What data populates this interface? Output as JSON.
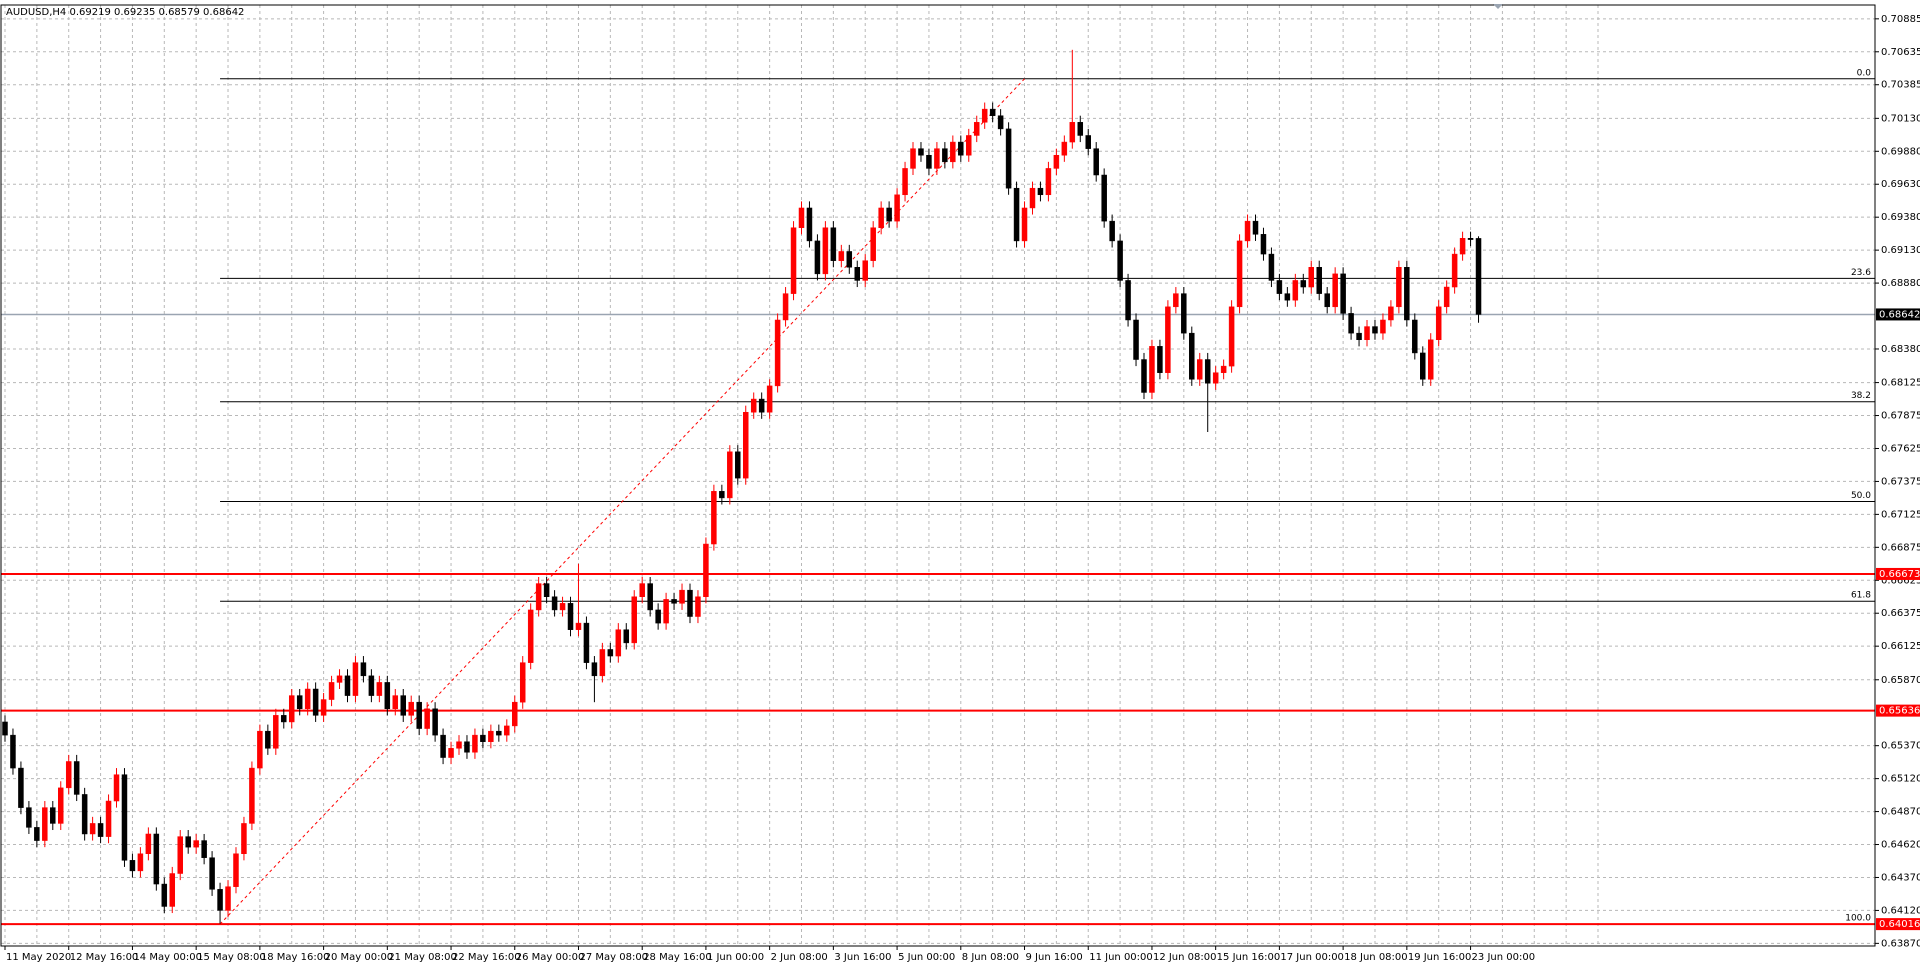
{
  "chart_data": {
    "type": "candlestick",
    "title": "AUDUSD,H4  0.69219 0.69235 0.68579 0.68642",
    "categories": [
      "11 May 2020",
      null,
      null,
      null,
      null,
      null,
      null,
      null,
      "12 May 16:00",
      null,
      null,
      null,
      null,
      null,
      null,
      null,
      "14 May 00:00",
      null,
      null,
      null,
      null,
      null,
      null,
      null,
      "15 May 08:00",
      null,
      null,
      null,
      null,
      null,
      null,
      null,
      "18 May 16:00",
      null,
      null,
      null,
      null,
      null,
      null,
      null,
      "20 May 00:00",
      null,
      null,
      null,
      null,
      null,
      null,
      null,
      "21 May 08:00",
      null,
      null,
      null,
      null,
      null,
      null,
      null,
      "22 May 16:00",
      null,
      null,
      null,
      null,
      null,
      null,
      null,
      "26 May 00:00",
      null,
      null,
      null,
      null,
      null,
      null,
      null,
      "27 May 08:00",
      null,
      null,
      null,
      null,
      null,
      null,
      null,
      "28 May 16:00",
      null,
      null,
      null,
      null,
      null,
      null,
      null,
      "1 Jun 00:00",
      null,
      null,
      null,
      null,
      null,
      null,
      null,
      "2 Jun 08:00",
      null,
      null,
      null,
      null,
      null,
      null,
      null,
      "3 Jun 16:00",
      null,
      null,
      null,
      null,
      null,
      null,
      null,
      "5 Jun 00:00",
      null,
      null,
      null,
      null,
      null,
      null,
      null,
      "8 Jun 08:00",
      null,
      null,
      null,
      null,
      null,
      null,
      null,
      "9 Jun 16:00",
      null,
      null,
      null,
      null,
      null,
      null,
      null,
      "11 Jun 00:00",
      null,
      null,
      null,
      null,
      null,
      null,
      null,
      "12 Jun 08:00",
      null,
      null,
      null,
      null,
      null,
      null,
      null,
      "15 Jun 16:00",
      null,
      null,
      null,
      null,
      null,
      null,
      null,
      "17 Jun 00:00",
      null,
      null,
      null,
      null,
      null,
      null,
      null,
      "18 Jun 08:00",
      null,
      null,
      null,
      null,
      null,
      null,
      null,
      "19 Jun 16:00",
      null,
      null,
      null,
      null,
      null,
      null,
      null,
      "23 Jun 00:00",
      null
    ],
    "open": [
      0.6555,
      0.6545,
      0.652,
      0.649,
      0.6475,
      0.6465,
      0.649,
      0.6478,
      0.6505,
      0.6525,
      0.65,
      0.647,
      0.6478,
      0.6468,
      0.6495,
      0.6515,
      0.645,
      0.6442,
      0.6455,
      0.647,
      0.6432,
      0.6415,
      0.644,
      0.6468,
      0.646,
      0.6465,
      0.6452,
      0.6428,
      0.6412,
      0.643,
      0.6455,
      0.6478,
      0.652,
      0.6548,
      0.6535,
      0.656,
      0.6555,
      0.6575,
      0.6565,
      0.658,
      0.656,
      0.6572,
      0.6585,
      0.659,
      0.6575,
      0.66,
      0.659,
      0.6575,
      0.6585,
      0.6565,
      0.6575,
      0.656,
      0.657,
      0.655,
      0.6565,
      0.6545,
      0.6528,
      0.6535,
      0.654,
      0.6532,
      0.6545,
      0.654,
      0.6548,
      0.6545,
      0.6552,
      0.657,
      0.66,
      0.664,
      0.666,
      0.665,
      0.664,
      0.6645,
      0.6625,
      0.663,
      0.66,
      0.659,
      0.661,
      0.6605,
      0.6625,
      0.6615,
      0.665,
      0.666,
      0.664,
      0.663,
      0.6648,
      0.6645,
      0.6655,
      0.6635,
      0.665,
      0.669,
      0.673,
      0.6725,
      0.676,
      0.674,
      0.679,
      0.68,
      0.679,
      0.681,
      0.686,
      0.688,
      0.693,
      0.6945,
      0.692,
      0.6895,
      0.693,
      0.6905,
      0.6912,
      0.69,
      0.689,
      0.6905,
      0.693,
      0.6945,
      0.6935,
      0.6955,
      0.6975,
      0.699,
      0.6985,
      0.6975,
      0.699,
      0.698,
      0.6995,
      0.6985,
      0.7,
      0.701,
      0.702,
      0.7015,
      0.7005,
      0.696,
      0.692,
      0.6945,
      0.696,
      0.6955,
      0.6975,
      0.6985,
      0.6995,
      0.701,
      0.7,
      0.699,
      0.697,
      0.6935,
      0.692,
      0.689,
      0.686,
      0.683,
      0.6805,
      0.684,
      0.682,
      0.687,
      0.688,
      0.685,
      0.6815,
      0.683,
      0.6812,
      0.682,
      0.6825,
      0.687,
      0.692,
      0.6935,
      0.6925,
      0.691,
      0.689,
      0.688,
      0.6875,
      0.689,
      0.6885,
      0.69,
      0.688,
      0.687,
      0.6895,
      0.6865,
      0.685,
      0.6845,
      0.6855,
      0.685,
      0.686,
      0.687,
      0.69,
      0.686,
      0.6835,
      0.6815,
      0.6845,
      0.687,
      0.6885,
      0.691,
      0.6922,
      0.69219
    ],
    "high": [
      0.656,
      0.655,
      0.6525,
      0.6495,
      0.648,
      0.6495,
      0.6495,
      0.651,
      0.653,
      0.653,
      0.6505,
      0.6483,
      0.6483,
      0.65,
      0.652,
      0.652,
      0.6455,
      0.646,
      0.6475,
      0.6475,
      0.6437,
      0.6445,
      0.6473,
      0.6473,
      0.647,
      0.647,
      0.6457,
      0.6433,
      0.6435,
      0.646,
      0.6483,
      0.6525,
      0.6553,
      0.6553,
      0.6565,
      0.6565,
      0.658,
      0.658,
      0.6585,
      0.6585,
      0.6577,
      0.659,
      0.6595,
      0.6595,
      0.6605,
      0.6605,
      0.6595,
      0.659,
      0.659,
      0.658,
      0.658,
      0.6575,
      0.6575,
      0.657,
      0.657,
      0.655,
      0.654,
      0.6545,
      0.6545,
      0.655,
      0.655,
      0.6553,
      0.6553,
      0.6557,
      0.6575,
      0.6605,
      0.6645,
      0.6665,
      0.6665,
      0.6655,
      0.665,
      0.665,
      0.6675,
      0.6635,
      0.6605,
      0.6615,
      0.6615,
      0.663,
      0.663,
      0.6655,
      0.6665,
      0.6665,
      0.6645,
      0.6653,
      0.6653,
      0.666,
      0.666,
      0.6655,
      0.6695,
      0.6735,
      0.6735,
      0.6765,
      0.6765,
      0.6795,
      0.6805,
      0.6805,
      0.6815,
      0.6865,
      0.6885,
      0.6935,
      0.695,
      0.695,
      0.6925,
      0.6935,
      0.6935,
      0.6917,
      0.6917,
      0.6905,
      0.691,
      0.6935,
      0.695,
      0.695,
      0.696,
      0.698,
      0.6995,
      0.6995,
      0.699,
      0.6995,
      0.6995,
      0.7,
      0.7,
      0.7005,
      0.7015,
      0.7025,
      0.7025,
      0.702,
      0.701,
      0.6965,
      0.695,
      0.6965,
      0.6965,
      0.698,
      0.699,
      0.7,
      0.7065,
      0.7015,
      0.7005,
      0.6995,
      0.6975,
      0.694,
      0.6925,
      0.6895,
      0.6865,
      0.6835,
      0.6845,
      0.6845,
      0.6875,
      0.6885,
      0.6885,
      0.6855,
      0.6835,
      0.6835,
      0.6825,
      0.683,
      0.6875,
      0.6925,
      0.694,
      0.694,
      0.693,
      0.6915,
      0.6895,
      0.6885,
      0.6895,
      0.6895,
      0.6905,
      0.6905,
      0.6885,
      0.69,
      0.69,
      0.687,
      0.6855,
      0.686,
      0.686,
      0.6865,
      0.6875,
      0.6905,
      0.6905,
      0.6865,
      0.684,
      0.685,
      0.6875,
      0.689,
      0.6915,
      0.6927,
      0.6927,
      0.69235
    ],
    "low": [
      0.654,
      0.6515,
      0.6485,
      0.647,
      0.646,
      0.646,
      0.6473,
      0.6473,
      0.65,
      0.6495,
      0.6465,
      0.6465,
      0.6463,
      0.6463,
      0.649,
      0.6445,
      0.6437,
      0.6437,
      0.645,
      0.6427,
      0.641,
      0.641,
      0.6435,
      0.6455,
      0.6455,
      0.6447,
      0.6423,
      0.6402,
      0.6407,
      0.6425,
      0.645,
      0.6473,
      0.6515,
      0.653,
      0.653,
      0.655,
      0.655,
      0.656,
      0.656,
      0.6555,
      0.6555,
      0.6567,
      0.658,
      0.657,
      0.657,
      0.6585,
      0.657,
      0.657,
      0.656,
      0.656,
      0.6555,
      0.6555,
      0.6545,
      0.6545,
      0.654,
      0.6523,
      0.6523,
      0.653,
      0.6527,
      0.6527,
      0.6535,
      0.6535,
      0.654,
      0.654,
      0.6547,
      0.6565,
      0.6595,
      0.6635,
      0.6645,
      0.6635,
      0.6635,
      0.662,
      0.662,
      0.6595,
      0.657,
      0.6585,
      0.66,
      0.66,
      0.661,
      0.661,
      0.6645,
      0.6635,
      0.6625,
      0.6625,
      0.664,
      0.664,
      0.663,
      0.663,
      0.6645,
      0.6685,
      0.672,
      0.672,
      0.6735,
      0.6735,
      0.6785,
      0.6785,
      0.6785,
      0.6805,
      0.6855,
      0.6875,
      0.6925,
      0.6915,
      0.689,
      0.689,
      0.69,
      0.69,
      0.6895,
      0.6885,
      0.6885,
      0.69,
      0.6925,
      0.693,
      0.693,
      0.695,
      0.697,
      0.698,
      0.697,
      0.697,
      0.6975,
      0.6975,
      0.698,
      0.698,
      0.6995,
      0.7005,
      0.701,
      0.7,
      0.6955,
      0.6915,
      0.6915,
      0.694,
      0.695,
      0.695,
      0.697,
      0.698,
      0.699,
      0.6995,
      0.6985,
      0.6965,
      0.693,
      0.6915,
      0.6885,
      0.6855,
      0.6825,
      0.68,
      0.68,
      0.6815,
      0.6815,
      0.6865,
      0.6845,
      0.681,
      0.681,
      0.6775,
      0.6807,
      0.6815,
      0.682,
      0.6865,
      0.6915,
      0.692,
      0.6905,
      0.6885,
      0.6875,
      0.687,
      0.687,
      0.688,
      0.688,
      0.6875,
      0.6865,
      0.6865,
      0.686,
      0.6845,
      0.684,
      0.684,
      0.6845,
      0.6845,
      0.6855,
      0.6865,
      0.6855,
      0.683,
      0.681,
      0.681,
      0.684,
      0.6865,
      0.688,
      0.6905,
      0.6916,
      0.68579
    ],
    "close": [
      0.6545,
      0.652,
      0.649,
      0.6475,
      0.6465,
      0.649,
      0.6478,
      0.6505,
      0.6525,
      0.65,
      0.647,
      0.6478,
      0.6468,
      0.6495,
      0.6515,
      0.645,
      0.6442,
      0.6455,
      0.647,
      0.6432,
      0.6415,
      0.644,
      0.6468,
      0.646,
      0.6465,
      0.6452,
      0.6428,
      0.6412,
      0.643,
      0.6455,
      0.6478,
      0.652,
      0.6548,
      0.6535,
      0.656,
      0.6555,
      0.6575,
      0.6565,
      0.658,
      0.656,
      0.6572,
      0.6585,
      0.659,
      0.6575,
      0.66,
      0.659,
      0.6575,
      0.6585,
      0.6565,
      0.6575,
      0.656,
      0.657,
      0.655,
      0.6565,
      0.6545,
      0.6528,
      0.6535,
      0.654,
      0.6532,
      0.6545,
      0.654,
      0.6548,
      0.6545,
      0.6552,
      0.657,
      0.66,
      0.664,
      0.666,
      0.665,
      0.664,
      0.6645,
      0.6625,
      0.663,
      0.66,
      0.659,
      0.661,
      0.6605,
      0.6625,
      0.6615,
      0.665,
      0.666,
      0.664,
      0.663,
      0.6648,
      0.6645,
      0.6655,
      0.6635,
      0.665,
      0.669,
      0.673,
      0.6725,
      0.676,
      0.674,
      0.679,
      0.68,
      0.679,
      0.681,
      0.686,
      0.688,
      0.693,
      0.6945,
      0.692,
      0.6895,
      0.693,
      0.6905,
      0.6912,
      0.69,
      0.689,
      0.6905,
      0.693,
      0.6945,
      0.6935,
      0.6955,
      0.6975,
      0.699,
      0.6985,
      0.6975,
      0.699,
      0.698,
      0.6995,
      0.6985,
      0.7,
      0.701,
      0.702,
      0.7015,
      0.7005,
      0.696,
      0.692,
      0.6945,
      0.696,
      0.6955,
      0.6975,
      0.6985,
      0.6995,
      0.701,
      0.7,
      0.699,
      0.697,
      0.6935,
      0.692,
      0.689,
      0.686,
      0.683,
      0.6805,
      0.684,
      0.682,
      0.687,
      0.688,
      0.685,
      0.6815,
      0.683,
      0.6812,
      0.682,
      0.6825,
      0.687,
      0.692,
      0.6935,
      0.6925,
      0.691,
      0.689,
      0.688,
      0.6875,
      0.689,
      0.6885,
      0.69,
      0.688,
      0.687,
      0.6895,
      0.6865,
      0.685,
      0.6845,
      0.6855,
      0.685,
      0.686,
      0.687,
      0.69,
      0.686,
      0.6835,
      0.6815,
      0.6845,
      0.687,
      0.6885,
      0.691,
      0.6922,
      0.6921,
      0.68642
    ],
    "up_color": "#ff0000",
    "down_color": "#000000",
    "ylim": [
      0.6385,
      0.7099
    ],
    "yticks": [
      0.70885,
      0.70635,
      0.70385,
      {
        "value": 0.7013,
        "label": "0.70130"
      },
      {
        "value": 0.6988,
        "label": "0.69880"
      },
      {
        "value": 0.6963,
        "label": "0.69630"
      },
      {
        "value": 0.6938,
        "label": "0.69380"
      },
      {
        "value": 0.6913,
        "label": "0.69130"
      },
      {
        "value": 0.6888,
        "label": "0.68880"
      },
      {
        "value": 0.6838,
        "label": "0.68380"
      },
      0.68125,
      0.67875,
      0.67625,
      0.67375,
      0.67125,
      0.66875,
      0.66625,
      0.66375,
      0.66125,
      {
        "value": 0.6587,
        "label": "0.65870"
      },
      {
        "value": 0.6537,
        "label": "0.65370"
      },
      {
        "value": 0.6512,
        "label": "0.65120"
      },
      {
        "value": 0.6487,
        "label": "0.64870"
      },
      {
        "value": 0.6462,
        "label": "0.64620"
      },
      {
        "value": 0.6437,
        "label": "0.64370"
      },
      {
        "value": 0.6412,
        "label": "0.64120"
      },
      {
        "value": 0.6387,
        "label": "0.63870"
      }
    ],
    "grid": true,
    "current_price": 0.68642,
    "current_price_color": "#9aa4b1",
    "levels": [
      0.66673,
      0.65636,
      0.64016
    ],
    "level_color": "#ff0000",
    "fibonacci": {
      "color": "#000000",
      "levels": [
        {
          "label": "0.0",
          "price": 0.7043
        },
        {
          "label": "23.6",
          "price": 0.68916
        },
        {
          "label": "38.2",
          "price": 0.6798
        },
        {
          "label": "50.0",
          "price": 0.67223
        },
        {
          "label": "61.8",
          "price": 0.66466
        },
        {
          "label": "100.0",
          "price": 0.64016
        }
      ]
    }
  }
}
